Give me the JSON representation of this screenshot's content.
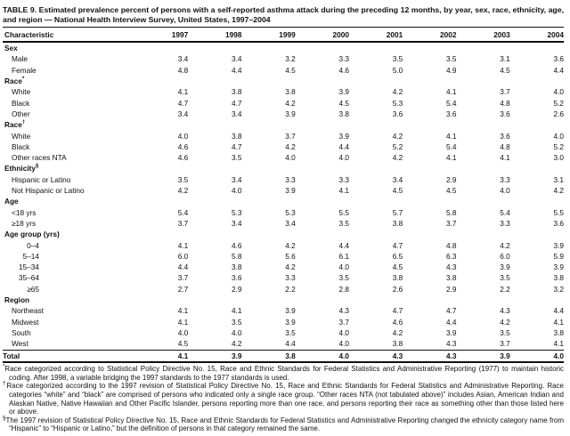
{
  "title": "TABLE 9. Estimated prevalence percent of persons with a self-reported asthma attack during the preceding 12 months, by year, sex, race, ethnicity, age, and region — National Health Interview Survey, United States, 1997–2004",
  "columns": [
    "Characteristic",
    "1997",
    "1998",
    "1999",
    "2000",
    "2001",
    "2002",
    "2003",
    "2004"
  ],
  "rows": [
    {
      "label": "Sex",
      "type": "section"
    },
    {
      "label": "Male",
      "type": "item",
      "values": [
        "3.4",
        "3.4",
        "3.2",
        "3.3",
        "3.5",
        "3.5",
        "3.1",
        "3.6"
      ]
    },
    {
      "label": "Female",
      "type": "item",
      "values": [
        "4.8",
        "4.4",
        "4.5",
        "4.6",
        "5.0",
        "4.9",
        "4.5",
        "4.4"
      ]
    },
    {
      "label": "Race",
      "marker": "*",
      "type": "section"
    },
    {
      "label": "White",
      "type": "item",
      "values": [
        "4.1",
        "3.8",
        "3.8",
        "3.9",
        "4.2",
        "4.1",
        "3.7",
        "4.0"
      ]
    },
    {
      "label": "Black",
      "type": "item",
      "values": [
        "4.7",
        "4.7",
        "4.2",
        "4.5",
        "5.3",
        "5.4",
        "4.8",
        "5.2"
      ]
    },
    {
      "label": "Other",
      "type": "item",
      "values": [
        "3.4",
        "3.4",
        "3.9",
        "3.8",
        "3.6",
        "3.6",
        "3.6",
        "2.6"
      ]
    },
    {
      "label": "Race",
      "marker": "†",
      "type": "section"
    },
    {
      "label": "White",
      "type": "item",
      "values": [
        "4.0",
        "3.8",
        "3.7",
        "3.9",
        "4.2",
        "4.1",
        "3.6",
        "4.0"
      ]
    },
    {
      "label": "Black",
      "type": "item",
      "values": [
        "4.6",
        "4.7",
        "4.2",
        "4.4",
        "5.2",
        "5.4",
        "4.8",
        "5.2"
      ]
    },
    {
      "label": "Other races NTA",
      "type": "item",
      "values": [
        "4.6",
        "3.5",
        "4.0",
        "4.0",
        "4.2",
        "4.1",
        "4.1",
        "3.0"
      ]
    },
    {
      "label": "Ethnicity",
      "marker": "§",
      "type": "section"
    },
    {
      "label": "Hispanic or Latino",
      "type": "item",
      "values": [
        "3.5",
        "3.4",
        "3.3",
        "3.3",
        "3.4",
        "2.9",
        "3.3",
        "3.1"
      ]
    },
    {
      "label": "Not Hispanic or Latino",
      "type": "item",
      "values": [
        "4.2",
        "4.0",
        "3.9",
        "4.1",
        "4.5",
        "4.5",
        "4.0",
        "4.2"
      ]
    },
    {
      "label": "Age",
      "type": "section"
    },
    {
      "label": "<18 yrs",
      "type": "item",
      "values": [
        "5.4",
        "5.3",
        "5.3",
        "5.5",
        "5.7",
        "5.8",
        "5.4",
        "5.5"
      ]
    },
    {
      "label": "≥18 yrs",
      "type": "item",
      "values": [
        "3.7",
        "3.4",
        "3.4",
        "3.5",
        "3.8",
        "3.7",
        "3.3",
        "3.6"
      ]
    },
    {
      "label": "Age group (yrs)",
      "type": "section"
    },
    {
      "label": "0–4",
      "type": "range",
      "values": [
        "4.1",
        "4.6",
        "4.2",
        "4.4",
        "4.7",
        "4.8",
        "4.2",
        "3.9"
      ]
    },
    {
      "label": "5–14",
      "type": "range",
      "values": [
        "6.0",
        "5.8",
        "5.6",
        "6.1",
        "6.5",
        "6.3",
        "6.0",
        "5.9"
      ]
    },
    {
      "label": "15–34",
      "type": "range",
      "values": [
        "4.4",
        "3.8",
        "4.2",
        "4.0",
        "4.5",
        "4.3",
        "3.9",
        "3.9"
      ]
    },
    {
      "label": "35–64",
      "type": "range",
      "values": [
        "3.7",
        "3.6",
        "3.3",
        "3.5",
        "3.8",
        "3.8",
        "3.5",
        "3.8"
      ]
    },
    {
      "label": "≥65",
      "type": "range",
      "values": [
        "2.7",
        "2.9",
        "2.2",
        "2.8",
        "2.6",
        "2.9",
        "2.2",
        "3.2"
      ]
    },
    {
      "label": "Region",
      "type": "section"
    },
    {
      "label": "Northeast",
      "type": "item",
      "values": [
        "4.1",
        "4.1",
        "3.9",
        "4.3",
        "4.7",
        "4.7",
        "4.3",
        "4.4"
      ]
    },
    {
      "label": "Midwest",
      "type": "item",
      "values": [
        "4.1",
        "3.5",
        "3.9",
        "3.7",
        "4.6",
        "4.4",
        "4.2",
        "4.1"
      ]
    },
    {
      "label": "South",
      "type": "item",
      "values": [
        "4.0",
        "4.0",
        "3.5",
        "4.0",
        "4.2",
        "3.9",
        "3.5",
        "3.8"
      ]
    },
    {
      "label": "West",
      "type": "item",
      "values": [
        "4.5",
        "4.2",
        "4.4",
        "4.0",
        "3.8",
        "4.3",
        "3.7",
        "4.1"
      ]
    },
    {
      "label": "Total",
      "type": "total",
      "values": [
        "4.1",
        "3.9",
        "3.8",
        "4.0",
        "4.3",
        "4.3",
        "3.9",
        "4.0"
      ]
    }
  ],
  "footnotes": [
    {
      "marker": "*",
      "text": "Race categorized according to Statistical Policy Directive No. 15, Race and Ethnic Standards for Federal Statistics and Administrative Reporting (1977) to maintain historic coding. After 1998, a variable bridging the 1997 standards to the 1977 standards is used."
    },
    {
      "marker": "†",
      "text": "Race categorized according to the 1997 revision of Statistical Policy Directive No. 15, Race and Ethnic Standards for Federal Statistics and Administrative Reporting. Race categories “white” and “black” are comprised of persons who indicated only a single race group. “Other races NTA (not tabulated above)” includes Asian, American Indian and Alaskan Native, Native Hawaiian and Other Pacific Islander, persons reporting more than one race, and persons reporting their race as something other than those listed here or above."
    },
    {
      "marker": "§",
      "text": "The 1997 revision of Statistical Policy Directive No. 15, Race and Ethnic Standards for Federal Statistics and Administrative Reporting changed the ethnicity category name from “Hispanic” to “Hispanic or Latino,” but the definition of persons in that category remained the same."
    }
  ]
}
